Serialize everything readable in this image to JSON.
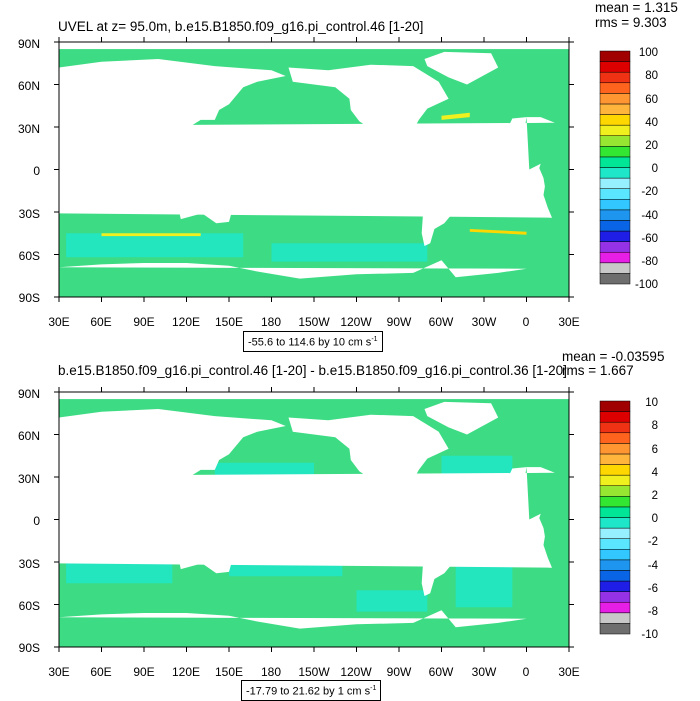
{
  "colorbar_colors": [
    "#6e6e6e",
    "#c8c8c8",
    "#e61ee6",
    "#9632e6",
    "#1e1ee6",
    "#0a64e6",
    "#1e96f0",
    "#32c8ff",
    "#5ae6ff",
    "#96f0ff",
    "#1ee6c8",
    "#00e696",
    "#32e632",
    "#96e632",
    "#f0f01e",
    "#ffd700",
    "#ffb43c",
    "#ff9632",
    "#ff641e",
    "#f03214",
    "#dc0000",
    "#a00000"
  ],
  "map_colors": {
    "ocean_base": "#3ddc84",
    "cyan": "#1ee6c8",
    "land": "#ffffff"
  },
  "panels": [
    {
      "title": "UVEL at z=  95.0m, b.e15.B1850.f09_g16.pi_control.46 [1-20]",
      "mean": "mean = 1.315",
      "rms": "rms = 9.303",
      "range_text": "-55.6 to 114.6 by 10 cm s",
      "range_sup": "-1",
      "lat_labels": [
        "90N",
        "60N",
        "30N",
        "0",
        "30S",
        "60S",
        "90S"
      ],
      "lon_labels": [
        "30E",
        "60E",
        "90E",
        "120E",
        "150E",
        "180",
        "150W",
        "120W",
        "90W",
        "60W",
        "30W",
        "0",
        "30E"
      ],
      "colorbar_labels": [
        "100",
        "80",
        "60",
        "40",
        "20",
        "0",
        "-20",
        "-40",
        "-60",
        "-80",
        "-100"
      ]
    },
    {
      "title": "b.e15.B1850.f09_g16.pi_control.46 [1-20] - b.e15.B1850.f09_g16.pi_control.36 [1-20]",
      "mean": "mean = -0.03595",
      "rms": "rms = 1.667",
      "range_text": "-17.79 to 21.62 by 1 cm s",
      "range_sup": "-1",
      "lat_labels": [
        "90N",
        "60N",
        "30N",
        "0",
        "30S",
        "60S",
        "90S"
      ],
      "lon_labels": [
        "30E",
        "60E",
        "90E",
        "120E",
        "150E",
        "180",
        "150W",
        "120W",
        "90W",
        "60W",
        "30W",
        "0",
        "30E"
      ],
      "colorbar_labels": [
        "10",
        "8",
        "6",
        "4",
        "2",
        "0",
        "-2",
        "-4",
        "-6",
        "-8",
        "-10"
      ]
    }
  ]
}
